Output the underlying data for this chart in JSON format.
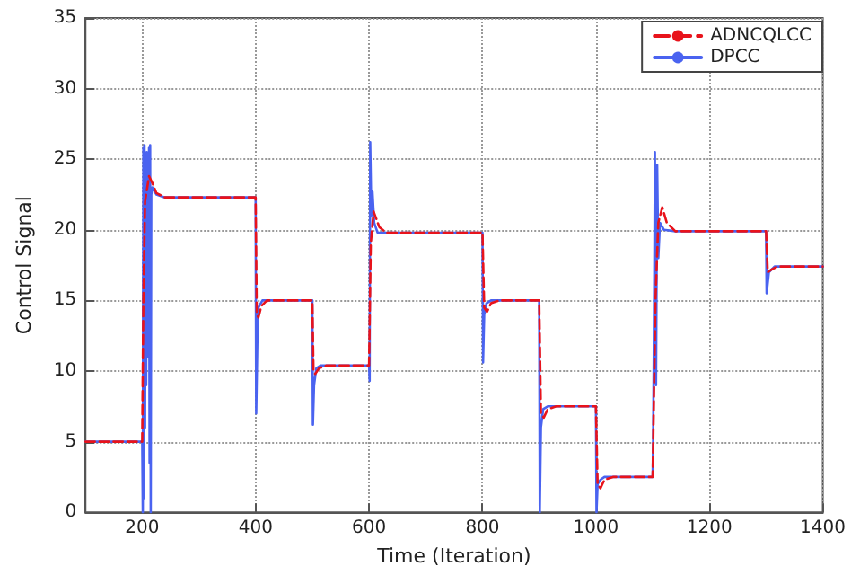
{
  "chart_data": {
    "type": "line",
    "xlabel": "Time (Iteration)",
    "ylabel": "Control Signal",
    "xlim": [
      100,
      1400
    ],
    "xticks": [
      200,
      400,
      600,
      800,
      1000,
      1200,
      1400
    ],
    "ylim": [
      0,
      35
    ],
    "yticks": [
      0,
      5,
      10,
      15,
      20,
      25,
      30,
      35
    ],
    "grid": true,
    "legend": "top right",
    "marker": "none",
    "series": [
      {
        "name": "ADNCQLCC",
        "color": "#e8131b",
        "line_style": "dashed",
        "x": [
          100,
          200,
          202,
          205,
          212,
          218,
          225,
          240,
          400,
          402,
          405,
          410,
          420,
          500,
          502,
          505,
          512,
          525,
          600,
          603,
          608,
          618,
          630,
          800,
          803,
          808,
          815,
          830,
          900,
          903,
          908,
          915,
          930,
          1000,
          1003,
          1008,
          1015,
          1030,
          1100,
          1105,
          1110,
          1117,
          1125,
          1140,
          1300,
          1303,
          1310,
          1320,
          1400
        ],
        "values": [
          5,
          5,
          15,
          22,
          23.8,
          23.3,
          22.6,
          22.3,
          22.3,
          14,
          13.8,
          14.6,
          15,
          15,
          10,
          9.8,
          10.2,
          10.4,
          10.4,
          19,
          21.3,
          20.2,
          19.8,
          19.8,
          14.5,
          14.2,
          14.8,
          15,
          15,
          7,
          6.7,
          7.3,
          7.5,
          7.5,
          2,
          1.7,
          2.3,
          2.5,
          2.5,
          15,
          20.5,
          21.6,
          20.5,
          19.9,
          19.9,
          17,
          17.2,
          17.4,
          17.4
        ]
      },
      {
        "name": "DPCC",
        "color": "#4a63f0",
        "line_style": "solid",
        "x": [
          100,
          200,
          201,
          202,
          203,
          204,
          205,
          206,
          207,
          208,
          209,
          210,
          211,
          212,
          213,
          214,
          215,
          216,
          218,
          225,
          240,
          400,
          401,
          403,
          405,
          412,
          500,
          501,
          503,
          507,
          515,
          600,
          601,
          602,
          604,
          606,
          609,
          615,
          800,
          801,
          803,
          807,
          815,
          900,
          901,
          903,
          907,
          915,
          1000,
          1001,
          1003,
          1008,
          1015,
          1100,
          1101,
          1103,
          1104,
          1106,
          1108,
          1110,
          1113,
          1120,
          1140,
          1300,
          1301,
          1305,
          1315,
          1400
        ],
        "values": [
          5,
          5,
          0,
          25.8,
          1,
          26,
          6,
          25,
          9,
          25.5,
          11,
          24,
          12,
          25.8,
          3.5,
          26,
          0,
          22.5,
          23,
          22.5,
          22.3,
          22.3,
          7,
          12,
          14.5,
          15,
          15,
          6.2,
          9,
          10.2,
          10.4,
          10.4,
          9.3,
          26.2,
          21,
          22.7,
          20.5,
          19.8,
          19.8,
          10.6,
          14,
          14.8,
          15,
          15,
          0,
          6,
          7.3,
          7.5,
          7.5,
          0,
          2,
          2.3,
          2.5,
          2.5,
          5.5,
          17,
          25.5,
          9,
          24.6,
          18,
          20.5,
          20,
          19.9,
          19.9,
          15.5,
          17,
          17.4,
          17.4
        ]
      }
    ]
  }
}
